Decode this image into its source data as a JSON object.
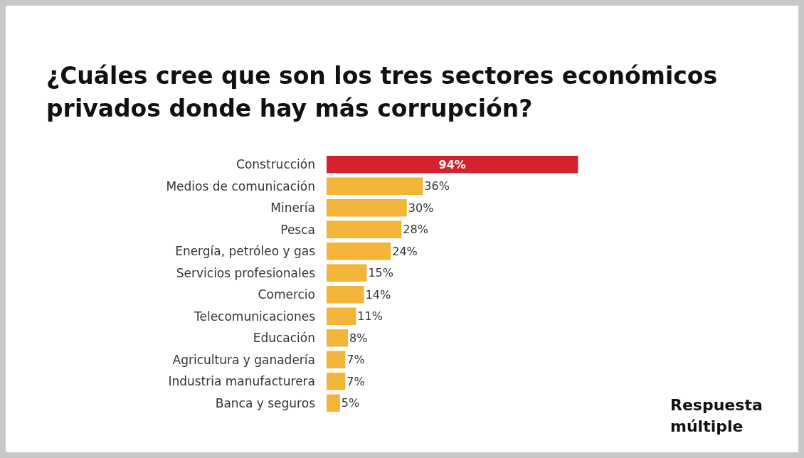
{
  "chart_data": {
    "type": "bar",
    "orientation": "horizontal",
    "title": "¿Cuáles cree que son los tres sectores económicos privados donde hay más corrupción?",
    "categories": [
      "Construcción",
      "Medios de comunicación",
      "Minería",
      "Pesca",
      "Energía, petróleo y gas",
      "Servicios profesionales",
      "Comercio",
      "Telecomunicaciones",
      "Educación",
      "Agricultura y ganadería",
      "Industria manufacturera",
      "Banca y seguros"
    ],
    "values": [
      94,
      36,
      30,
      28,
      24,
      15,
      14,
      11,
      8,
      7,
      7,
      5
    ],
    "colors": [
      "#d2232f",
      "#f2b53a",
      "#f2b53a",
      "#f2b53a",
      "#f2b53a",
      "#f2b53a",
      "#f2b53a",
      "#f2b53a",
      "#f2b53a",
      "#f2b53a",
      "#f2b53a",
      "#f2b53a"
    ],
    "value_labels": [
      "94%",
      "36%",
      "30%",
      "28%",
      "24%",
      "15%",
      "14%",
      "11%",
      "8%",
      "7%",
      "7%",
      "5%"
    ],
    "annotations": [
      "Respuesta múltiple"
    ]
  }
}
